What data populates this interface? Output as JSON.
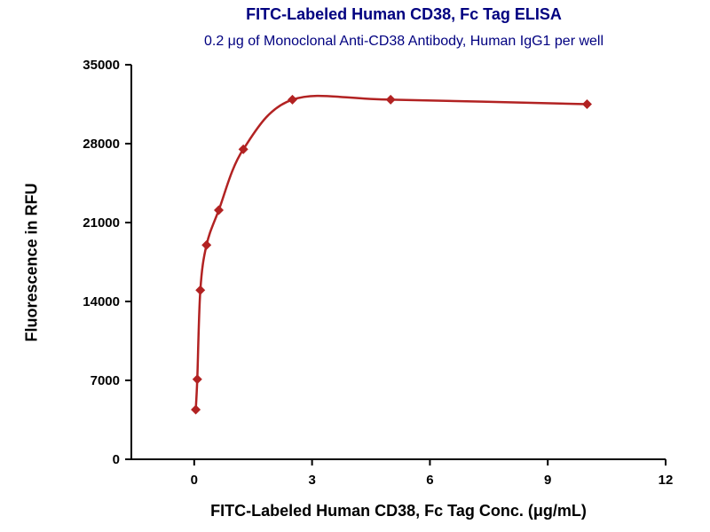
{
  "chart_data": {
    "type": "scatter",
    "title": "FITC-Labeled Human CD38, Fc Tag ELISA",
    "subtitle": "0.2 μg of Monoclonal Anti-CD38 Antibody, Human IgG1 per well",
    "xlabel": "FITC-Labeled Human CD38, Fc Tag Conc. (μg/mL)",
    "ylabel": "Fluorescence in RFU",
    "x": [
      0.039,
      0.078,
      0.156,
      0.313,
      0.625,
      1.25,
      2.5,
      5,
      10
    ],
    "y": [
      4400,
      7100,
      15000,
      19000,
      22100,
      27500,
      31900,
      31900,
      31500
    ],
    "xlim": [
      -1.6,
      12
    ],
    "ylim": [
      0,
      35000
    ],
    "xticks": [
      0,
      3,
      6,
      9,
      12
    ],
    "yticks": [
      0,
      7000,
      14000,
      21000,
      28000,
      35000
    ],
    "grid": false,
    "legend": "none",
    "line_color": "#b22222",
    "marker": "diamond",
    "title_color": "#000080",
    "axis_color": "#000000"
  }
}
